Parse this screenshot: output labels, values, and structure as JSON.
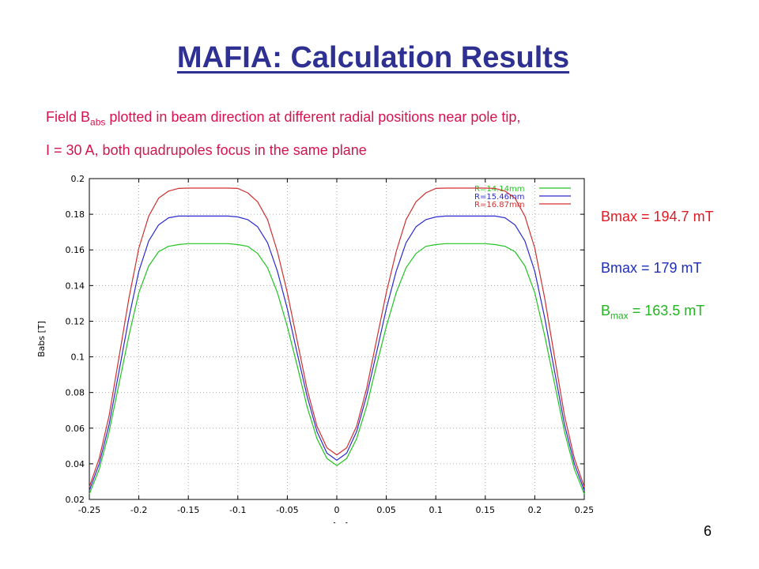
{
  "slide": {
    "title": "MAFIA: Calculation Results",
    "subtitle_line1": {
      "pre": "Field B",
      "sub": "abs",
      "post": " plotted in beam direction at different radial positions near pole tip,"
    },
    "subtitle_line2": "I =  30 A, both quadrupoles focus in the same plane",
    "annotations": [
      {
        "pre": "Bmax = 194.7 mT",
        "sub": "",
        "post": "",
        "color": "#e01b24"
      },
      {
        "pre": "Bmax = 179 mT",
        "sub": "",
        "post": "",
        "color": "#1f2fb5"
      },
      {
        "pre": "B",
        "sub": "max",
        "post": " = 163.5 mT",
        "color": "#21b521"
      }
    ],
    "page_number": "6"
  },
  "chart_data": {
    "type": "line",
    "title": "",
    "xlabel": "z [m]",
    "ylabel": "Babs [T]",
    "xlim": [
      -0.25,
      0.25
    ],
    "ylim": [
      0.02,
      0.2
    ],
    "xticks": [
      -0.25,
      -0.2,
      -0.15,
      -0.1,
      -0.05,
      0,
      0.05,
      0.1,
      0.15,
      0.2,
      0.25
    ],
    "xtick_labels": [
      "-0.25",
      "-0.2",
      "-0.15",
      "-0.1",
      "-0.05",
      "0",
      "0.05",
      "0.1",
      "0.15",
      "0.2",
      "0.25"
    ],
    "yticks": [
      0.02,
      0.04,
      0.06,
      0.08,
      0.1,
      0.12,
      0.14,
      0.16,
      0.18,
      0.2
    ],
    "ytick_labels": [
      "0.02",
      "0.04",
      "0.06",
      "0.08",
      "0.1",
      "0.12",
      "0.14",
      "0.16",
      "0.18",
      "0.2"
    ],
    "grid": true,
    "legend_position": "top-right",
    "x": [
      -0.25,
      -0.24,
      -0.23,
      -0.22,
      -0.21,
      -0.2,
      -0.19,
      -0.18,
      -0.17,
      -0.16,
      -0.15,
      -0.14,
      -0.13,
      -0.12,
      -0.11,
      -0.1,
      -0.09,
      -0.08,
      -0.07,
      -0.06,
      -0.05,
      -0.04,
      -0.03,
      -0.02,
      -0.01,
      0,
      0.01,
      0.02,
      0.03,
      0.04,
      0.05,
      0.06,
      0.07,
      0.08,
      0.09,
      0.1,
      0.11,
      0.12,
      0.13,
      0.14,
      0.15,
      0.16,
      0.17,
      0.18,
      0.19,
      0.2,
      0.21,
      0.22,
      0.23,
      0.24,
      0.25
    ],
    "series": [
      {
        "name": "R=14.14mm",
        "color": "#21c421",
        "values": [
          0.023,
          0.037,
          0.058,
          0.085,
          0.112,
          0.136,
          0.151,
          0.159,
          0.162,
          0.163,
          0.1635,
          0.1635,
          0.1635,
          0.1635,
          0.1635,
          0.163,
          0.162,
          0.158,
          0.15,
          0.136,
          0.117,
          0.095,
          0.072,
          0.054,
          0.043,
          0.039,
          0.043,
          0.054,
          0.072,
          0.095,
          0.117,
          0.136,
          0.15,
          0.158,
          0.162,
          0.163,
          0.1635,
          0.1635,
          0.1635,
          0.1635,
          0.1635,
          0.163,
          0.162,
          0.159,
          0.151,
          0.136,
          0.112,
          0.085,
          0.058,
          0.037,
          0.023
        ]
      },
      {
        "name": "R=15.46mm",
        "color": "#2b2bd0",
        "values": [
          0.025,
          0.04,
          0.062,
          0.092,
          0.122,
          0.148,
          0.165,
          0.174,
          0.178,
          0.179,
          0.179,
          0.179,
          0.179,
          0.179,
          0.179,
          0.1785,
          0.177,
          0.173,
          0.164,
          0.148,
          0.127,
          0.102,
          0.078,
          0.058,
          0.046,
          0.042,
          0.046,
          0.058,
          0.078,
          0.102,
          0.127,
          0.148,
          0.164,
          0.173,
          0.177,
          0.1785,
          0.179,
          0.179,
          0.179,
          0.179,
          0.179,
          0.179,
          0.178,
          0.174,
          0.165,
          0.148,
          0.122,
          0.092,
          0.062,
          0.04,
          0.025
        ]
      },
      {
        "name": "R=16.87mm",
        "color": "#d03030",
        "values": [
          0.027,
          0.043,
          0.067,
          0.1,
          0.133,
          0.161,
          0.179,
          0.189,
          0.193,
          0.1945,
          0.1947,
          0.1947,
          0.1947,
          0.1947,
          0.1947,
          0.1945,
          0.192,
          0.187,
          0.177,
          0.159,
          0.136,
          0.109,
          0.082,
          0.061,
          0.049,
          0.045,
          0.049,
          0.061,
          0.082,
          0.109,
          0.136,
          0.159,
          0.177,
          0.187,
          0.192,
          0.1945,
          0.1947,
          0.1947,
          0.1947,
          0.1947,
          0.1947,
          0.1945,
          0.193,
          0.189,
          0.179,
          0.161,
          0.133,
          0.1,
          0.067,
          0.043,
          0.027
        ]
      }
    ]
  }
}
